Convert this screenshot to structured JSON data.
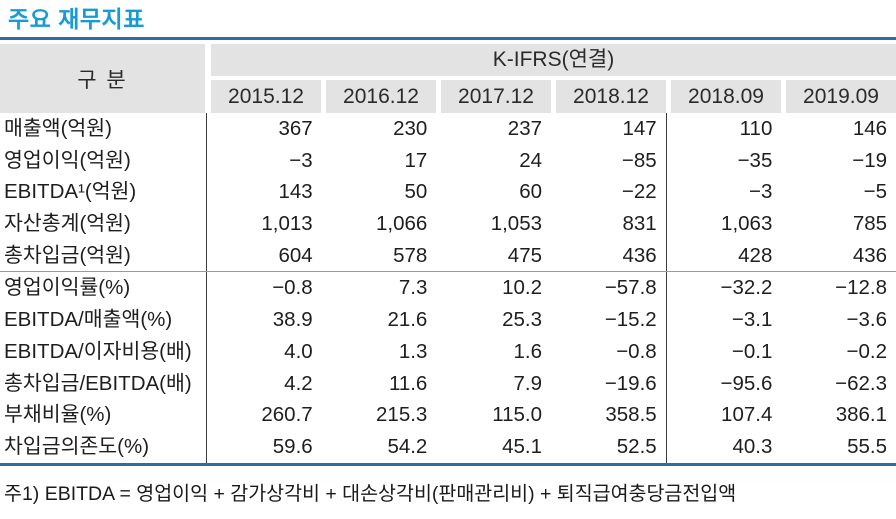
{
  "title": "주요 재무지표",
  "table": {
    "gubun_label": "구 분",
    "standard_label": "K-IFRS(연결)",
    "periods": [
      "2015.12",
      "2016.12",
      "2017.12",
      "2018.12",
      "2018.09",
      "2019.09"
    ],
    "rows": [
      {
        "label": "매출액(억원)",
        "values": [
          "367",
          "230",
          "237",
          "147",
          "110",
          "146"
        ]
      },
      {
        "label": "영업이익(억원)",
        "values": [
          "−3",
          "17",
          "24",
          "−85",
          "−35",
          "−19"
        ]
      },
      {
        "label": "EBITDA¹(억원)",
        "values": [
          "143",
          "50",
          "60",
          "−22",
          "−3",
          "−5"
        ]
      },
      {
        "label": "자산총계(억원)",
        "values": [
          "1,013",
          "1,066",
          "1,053",
          "831",
          "1,063",
          "785"
        ]
      },
      {
        "label": "총차입금(억원)",
        "values": [
          "604",
          "578",
          "475",
          "436",
          "428",
          "436"
        ]
      },
      {
        "label": "영업이익률(%)",
        "values": [
          "−0.8",
          "7.3",
          "10.2",
          "−57.8",
          "−32.2",
          "−12.8"
        ]
      },
      {
        "label": "EBITDA/매출액(%)",
        "values": [
          "38.9",
          "21.6",
          "25.3",
          "−15.2",
          "−3.1",
          "−3.6"
        ]
      },
      {
        "label": "EBITDA/이자비용(배)",
        "values": [
          "4.0",
          "1.3",
          "1.6",
          "−0.8",
          "−0.1",
          "−0.2"
        ]
      },
      {
        "label": "총차입금/EBITDA(배)",
        "values": [
          "4.2",
          "11.6",
          "7.9",
          "−19.6",
          "−95.6",
          "−62.3"
        ]
      },
      {
        "label": "부채비율(%)",
        "values": [
          "260.7",
          "215.3",
          "115.0",
          "358.5",
          "107.4",
          "386.1"
        ]
      },
      {
        "label": "차입금의존도(%)",
        "values": [
          "59.6",
          "54.2",
          "45.1",
          "52.5",
          "40.3",
          "55.5"
        ]
      }
    ]
  },
  "footnote": "주1) EBITDA = 영업이익 + 감가상각비 + 대손상각비(판매관리비) + 퇴직급여충당금전입액",
  "colors": {
    "title_blue": "#179bd7",
    "rule_blue": "#2c6f9f",
    "header_gray": "#e3e3e3",
    "text": "#1e1e1e"
  }
}
